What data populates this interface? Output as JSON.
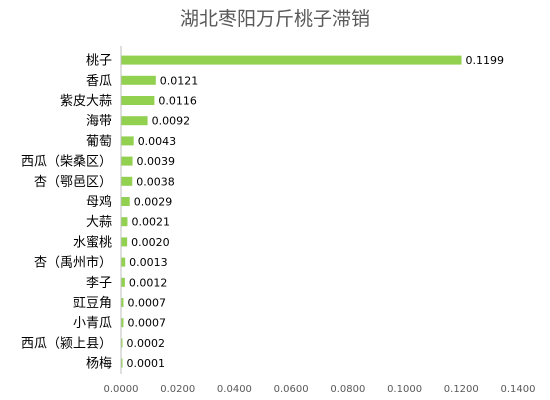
{
  "chart_data": {
    "type": "bar",
    "orientation": "horizontal",
    "title": "湖北枣阳万斤桃子滞销",
    "categories": [
      "桃子",
      "香瓜",
      "紫皮大蒜",
      "海带",
      "葡萄",
      "西瓜（柴桑区）",
      "杏（鄂邑区）",
      "母鸡",
      "大蒜",
      "水蜜桃",
      "杏（禹州市）",
      "李子",
      "豇豆角",
      "小青瓜",
      "西瓜（颍上县）",
      "杨梅"
    ],
    "values": [
      0.1199,
      0.0121,
      0.0116,
      0.0092,
      0.0043,
      0.0039,
      0.0038,
      0.0029,
      0.0021,
      0.002,
      0.0013,
      0.0012,
      0.0007,
      0.0007,
      0.0002,
      0.0001
    ],
    "value_labels": [
      "0.1199",
      "0.0121",
      "0.0116",
      "0.0092",
      "0.0043",
      "0.0039",
      "0.0038",
      "0.0029",
      "0.0021",
      "0.0020",
      "0.0013",
      "0.0012",
      "0.0007",
      "0.0007",
      "0.0002",
      "0.0001"
    ],
    "xticks": [
      "0.0000",
      "0.0200",
      "0.0400",
      "0.0600",
      "0.0800",
      "0.1000",
      "0.1200",
      "0.1400"
    ],
    "xlim": [
      0,
      0.14
    ],
    "grid": false,
    "legend": false,
    "bar_color": "#92D050",
    "axis_color": "#BFBFBF"
  }
}
